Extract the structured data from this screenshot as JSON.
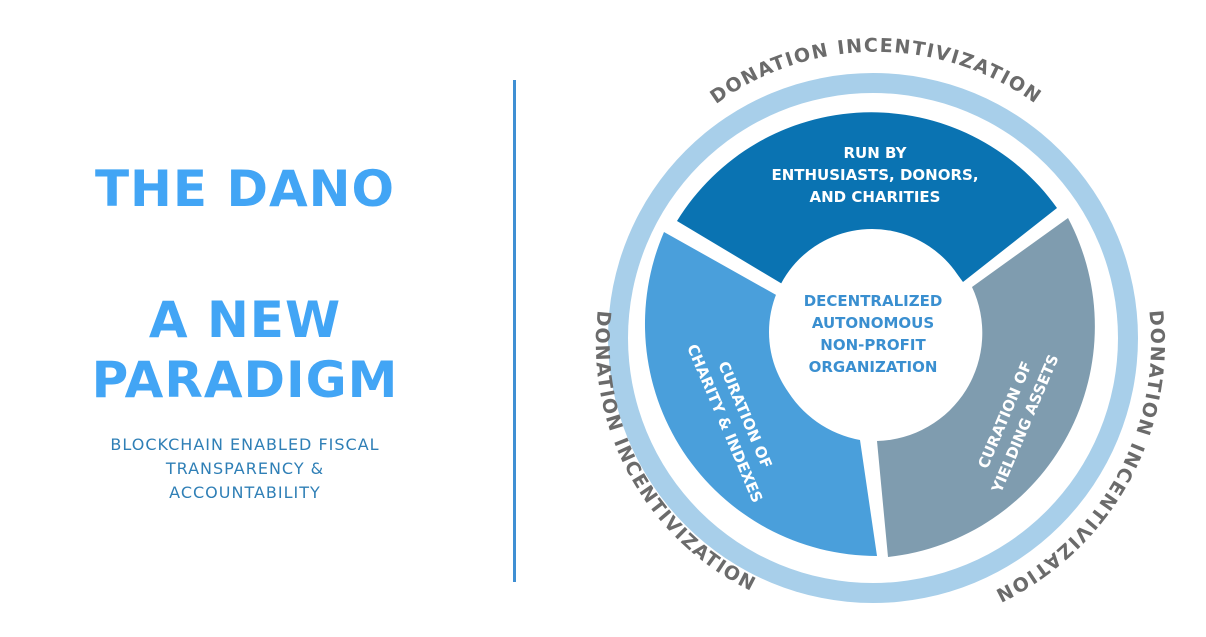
{
  "left": {
    "title_line1": "THE DANO",
    "title_line2": "A NEW",
    "title_line3": "PARADIGM",
    "subtitle_line1": "BLOCKCHAIN ENABLED FISCAL",
    "subtitle_line2": "TRANSPARENCY &",
    "subtitle_line3": "ACCOUNTABILITY"
  },
  "diagram": {
    "ring_label_top": "DONATION INCENTIVIZATION",
    "ring_label_left": "DONATION INCENTIVIZATION",
    "ring_label_right": "DONATION INCENTIVIZATION",
    "segment_top": [
      "RUN BY",
      "ENTHUSIASTS, DONORS,",
      "AND CHARITIES"
    ],
    "segment_left": [
      "CURATION OF",
      "CHARITY & INDEXES"
    ],
    "segment_right": [
      "CURATION OF",
      "YIELDING ASSETS"
    ],
    "center": [
      "DECENTRALIZED",
      "AUTONOMOUS",
      "NON-PROFIT",
      "ORGANIZATION"
    ]
  },
  "colors": {
    "headline": "#42a5f5",
    "subtitle": "#2f7fb6",
    "divider": "#3f8fd3",
    "ring": "#a8cfea",
    "segment_top": "#0a73b2",
    "segment_left": "#4a9fdb",
    "segment_right": "#7f9caf",
    "center_text": "#3a8fd0",
    "ring_text": "#6b6b6b"
  }
}
